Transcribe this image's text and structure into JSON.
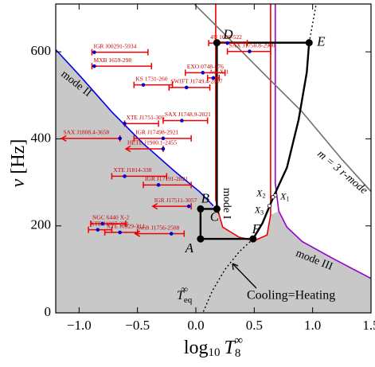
{
  "chart_data": {
    "type": "scatter",
    "xlim": [
      -1.2,
      1.5
    ],
    "ylim": [
      0,
      710
    ],
    "xticks": [
      {
        "value": -1.0,
        "label": "−1.0"
      },
      {
        "value": -0.5,
        "label": "−0.5"
      },
      {
        "value": 0.0,
        "label": "0.0"
      },
      0.5,
      {
        "value": 1.0,
        "label": "1.0"
      },
      1.5
    ],
    "yticks": [
      0,
      200,
      400,
      600
    ],
    "y_label": {
      "main": "ν",
      "unit": "[Hz]"
    },
    "x_label": {
      "main": "log",
      "sub1": "10",
      "var": "T",
      "sub2": "8",
      "sup": "∞"
    },
    "shaded": {
      "color": "#c8c8c8",
      "x": [
        -1.2,
        -0.99,
        -0.72,
        -0.45,
        -0.18,
        0.03,
        0.15,
        0.17,
        0.2,
        0.23,
        0.37,
        0.5,
        0.61,
        0.64,
        0.71,
        0.78,
        0.91,
        1.18,
        1.5,
        1.5,
        -1.2
      ],
      "y": [
        605,
        544,
        462,
        389,
        325,
        279,
        246,
        240,
        225,
        197,
        174,
        166,
        179,
        225,
        234,
        197,
        164,
        124,
        79,
        0,
        0
      ]
    },
    "curves": [
      {
        "name": "mode II",
        "color": "#0000ee",
        "width": 1.6,
        "x": [
          -1.2,
          -0.99,
          -0.72,
          -0.45,
          -0.18,
          0.03,
          0.15
        ],
        "y": [
          605,
          544,
          462,
          389,
          325,
          279,
          246
        ]
      },
      {
        "name": "mode I",
        "color": "#ee0000",
        "width": 1.6,
        "x": [
          0.17,
          0.17,
          0.2,
          0.23,
          0.37,
          0.5,
          0.61,
          0.64,
          0.64
        ],
        "y": [
          710,
          260,
          225,
          197,
          174,
          166,
          179,
          225,
          710
        ]
      },
      {
        "name": "mode III",
        "color": "#9900cc",
        "width": 1.6,
        "x": [
          0.68,
          0.68,
          0.71,
          0.78,
          0.91,
          1.18,
          1.5
        ],
        "y": [
          710,
          298,
          234,
          197,
          164,
          124,
          79
        ]
      },
      {
        "name": "m = 3 r-mode",
        "color": "#707070",
        "width": 1.6,
        "x": [
          -0.01,
          0.23,
          0.57,
          0.91,
          1.25,
          1.5
        ],
        "y": [
          709,
          645,
          553,
          462,
          353,
          279
        ]
      },
      {
        "color": "#000000",
        "width": 2.4,
        "x": [
          0.04,
          0.04,
          0.18,
          0.18,
          0.97,
          0.95,
          0.88,
          0.78,
          0.67,
          0.57,
          0.49,
          0.04
        ],
        "y": [
          170,
          239,
          239,
          621,
          621,
          553,
          444,
          334,
          270,
          206,
          170,
          170
        ]
      },
      {
        "color": "#000000",
        "width": 1.4,
        "dashed": true,
        "x": [
          0.97,
          1.03
        ],
        "y": [
          621,
          709
        ]
      },
      {
        "color": "#000000",
        "width": 1.4,
        "dashed": true,
        "x": [
          0.49,
          0.37,
          0.25,
          0.14,
          0.06
        ],
        "y": [
          170,
          140,
          100,
          50,
          0
        ]
      }
    ],
    "points": [
      {
        "label": "A",
        "x": 0.04,
        "y": 170
      },
      {
        "label": "B",
        "x": 0.04,
        "y": 239
      },
      {
        "label": "C",
        "x": 0.18,
        "y": 239
      },
      {
        "label": "D",
        "x": 0.18,
        "y": 621
      },
      {
        "label": "E",
        "x": 0.97,
        "y": 621
      },
      {
        "label": "F",
        "x": 0.49,
        "y": 170
      }
    ],
    "crossings": [
      {
        "label": "X",
        "sub": "1",
        "x": 0.68,
        "y": 270
      },
      {
        "label": "X",
        "sub": "2",
        "x": 0.66,
        "y": 266
      },
      {
        "label": "X",
        "sub": "3",
        "x": 0.63,
        "y": 246
      }
    ],
    "sources": {
      "bar_color": "#ee0000",
      "dot_color": "#0000cc",
      "items": [
        {
          "name": "IGR J00291-5934",
          "x": -0.87,
          "y": 599,
          "lo": -0.89,
          "hi": -0.41
        },
        {
          "name": "MXB 1659-298",
          "x": -0.87,
          "y": 567,
          "lo": -0.89,
          "hi": -0.38
        },
        {
          "name": "4U 1608-522",
          "x": 0.27,
          "y": 620,
          "lo": 0.11,
          "hi": 0.44
        },
        {
          "name": "SAX J1750.8-2900",
          "x": 0.46,
          "y": 601,
          "lo": 0.27,
          "hi": 0.64
        },
        {
          "name": "EXO 0748-676",
          "x": 0.06,
          "y": 552,
          "lo": -0.09,
          "hi": 0.25
        },
        {
          "name": "KS 1731-260",
          "x": -0.45,
          "y": 524,
          "lo": -0.53,
          "hi": -0.2
        },
        {
          "name": "Aql X-1",
          "x": 0.15,
          "y": 540,
          "lo": 0.1,
          "hi": 0.2
        },
        {
          "name": "SWIFT J1749.4-2807",
          "x": -0.08,
          "y": 518,
          "lo": -0.23,
          "hi": 0.12
        },
        {
          "name": "XTE J1751-305",
          "x": -0.61,
          "y": 435,
          "lo": -0.61,
          "hi": -0.32
        },
        {
          "name": "SAX J1748.9-2021",
          "x": -0.12,
          "y": 442,
          "lo": -0.28,
          "hi": 0.1
        },
        {
          "name": "SAX J1808.4-3658",
          "x": -0.65,
          "y": 401,
          "lo": -1.15,
          "hi": -0.65,
          "limit": true
        },
        {
          "name": "IGR J17498-2921",
          "x": -0.28,
          "y": 401,
          "lo": -0.53,
          "hi": -0.04
        },
        {
          "name": "HETE J1900.1-2455",
          "x": -0.28,
          "y": 377,
          "lo": -0.6,
          "hi": -0.28,
          "limit": true
        },
        {
          "name": "XTE J1814-338",
          "x": -0.61,
          "y": 314,
          "lo": -0.72,
          "hi": -0.25
        },
        {
          "name": "IGR J17191-2821",
          "x": -0.32,
          "y": 294,
          "lo": -0.45,
          "hi": -0.04
        },
        {
          "name": "IGR J17511-3057",
          "x": -0.06,
          "y": 245,
          "lo": -0.37,
          "hi": -0.04,
          "limit": true
        },
        {
          "name": "NGC 6440 X-2",
          "x": -0.8,
          "y": 205,
          "lo": -0.9,
          "hi": -0.6
        },
        {
          "name": "Swift J1756-2508",
          "x": -0.21,
          "y": 182,
          "lo": -0.52,
          "hi": -0.1,
          "limit": true
        },
        {
          "name": "XTE J1807-294",
          "x": -0.84,
          "y": 191,
          "lo": -0.92,
          "hi": -0.72
        },
        {
          "name": "XTE J0929-314",
          "x": -0.65,
          "y": 185,
          "lo": -0.78,
          "hi": -0.5
        }
      ]
    },
    "annotations": {
      "cooling": "Cooling=Heating",
      "teq": {
        "var": "T",
        "sub": "eq",
        "sup": "∞"
      }
    }
  }
}
